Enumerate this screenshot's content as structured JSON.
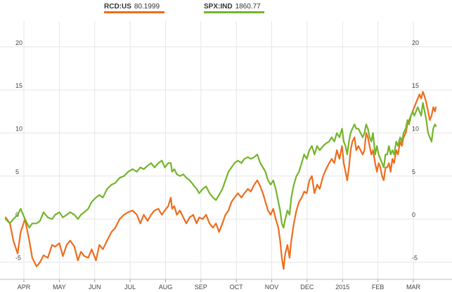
{
  "chart_data": {
    "type": "line",
    "legend_placement": "top-left",
    "grid": true,
    "x_labels": [
      "APR",
      "MAY",
      "JUN",
      "JUL",
      "AUG",
      "SEP",
      "OCT",
      "NOV",
      "DEC",
      "2015",
      "FEB",
      "MAR"
    ],
    "y_ticks": [
      -5,
      0,
      5,
      10,
      15,
      20
    ],
    "ylim": [
      -7,
      23
    ],
    "x_range": [
      0,
      1000
    ],
    "series": [
      {
        "name": "RCD:US",
        "last_value": "80.1999",
        "color": "#ee6d1c",
        "points": [
          [
            0,
            0.2
          ],
          [
            10,
            -0.5
          ],
          [
            18,
            -2.5
          ],
          [
            28,
            -4.0
          ],
          [
            35,
            -1.5
          ],
          [
            45,
            0
          ],
          [
            55,
            -2.5
          ],
          [
            62,
            -4.5
          ],
          [
            72,
            -5.5
          ],
          [
            80,
            -5.0
          ],
          [
            88,
            -4.2
          ],
          [
            98,
            -4.5
          ],
          [
            108,
            -3.0
          ],
          [
            115,
            -3.2
          ],
          [
            125,
            -2.8
          ],
          [
            133,
            -4.3
          ],
          [
            142,
            -3.0
          ],
          [
            150,
            -2.5
          ],
          [
            160,
            -3.2
          ],
          [
            168,
            -4.8
          ],
          [
            175,
            -3.8
          ],
          [
            183,
            -4.3
          ],
          [
            192,
            -4.5
          ],
          [
            200,
            -3.5
          ],
          [
            210,
            -4.8
          ],
          [
            218,
            -3.0
          ],
          [
            226,
            -3.5
          ],
          [
            236,
            -2.5
          ],
          [
            246,
            -1.5
          ],
          [
            255,
            -1.0
          ],
          [
            265,
            0
          ],
          [
            275,
            0.5
          ],
          [
            285,
            0.8
          ],
          [
            295,
            1.0
          ],
          [
            305,
            0.5
          ],
          [
            313,
            -0.5
          ],
          [
            321,
            0.5
          ],
          [
            330,
            -0.2
          ],
          [
            338,
            0.5
          ],
          [
            346,
            1.0
          ],
          [
            355,
            1.2
          ],
          [
            363,
            0.5
          ],
          [
            370,
            1.0
          ],
          [
            378,
            1.5
          ],
          [
            384,
            2.5
          ],
          [
            387,
            1.2
          ],
          [
            392,
            1.5
          ],
          [
            398,
            0.5
          ],
          [
            405,
            1.0
          ],
          [
            413,
            0.2
          ],
          [
            420,
            -0.5
          ],
          [
            428,
            0.2
          ],
          [
            436,
            0.5
          ],
          [
            444,
            -0.5
          ],
          [
            450,
            0.2
          ],
          [
            458,
            0
          ],
          [
            466,
            0.5
          ],
          [
            474,
            -0.5
          ],
          [
            482,
            -1.0
          ],
          [
            489,
            -0.5
          ],
          [
            496,
            -1.5
          ],
          [
            504,
            -0.5
          ],
          [
            511,
            0.5
          ],
          [
            518,
            1.0
          ],
          [
            525,
            2.0
          ],
          [
            532,
            2.5
          ],
          [
            540,
            3.0
          ],
          [
            548,
            2.5
          ],
          [
            555,
            3.0
          ],
          [
            563,
            3.5
          ],
          [
            570,
            3.2
          ],
          [
            578,
            4.0
          ],
          [
            585,
            4.5
          ],
          [
            592,
            3.8
          ],
          [
            598,
            3.0
          ],
          [
            604,
            2.0
          ],
          [
            610,
            1.0
          ],
          [
            616,
            0.5
          ],
          [
            622,
            1.2
          ],
          [
            628,
            0
          ],
          [
            634,
            -1.0
          ],
          [
            638,
            -2.5
          ],
          [
            642,
            -4.5
          ],
          [
            646,
            -5.8
          ],
          [
            650,
            -4.0
          ],
          [
            655,
            -3.0
          ],
          [
            660,
            -4.5
          ],
          [
            664,
            -2.5
          ],
          [
            670,
            -0.5
          ],
          [
            676,
            1.0
          ],
          [
            682,
            2.0
          ],
          [
            688,
            2.5
          ],
          [
            694,
            3.2
          ],
          [
            700,
            3.0
          ],
          [
            706,
            4.5
          ],
          [
            712,
            5.0
          ],
          [
            718,
            3.0
          ],
          [
            724,
            4.0
          ],
          [
            730,
            3.5
          ],
          [
            738,
            5.0
          ],
          [
            745,
            5.8
          ],
          [
            752,
            6.5
          ],
          [
            758,
            7.0
          ],
          [
            764,
            6.5
          ],
          [
            770,
            8.0
          ],
          [
            776,
            7.0
          ],
          [
            782,
            8.5
          ],
          [
            786,
            6.5
          ],
          [
            790,
            5.5
          ],
          [
            794,
            4.5
          ],
          [
            798,
            6.0
          ],
          [
            802,
            8.0
          ],
          [
            806,
            9.0
          ],
          [
            811,
            9.5
          ],
          [
            815,
            8.0
          ],
          [
            820,
            8.5
          ],
          [
            825,
            8.0
          ],
          [
            830,
            7.5
          ],
          [
            834,
            8.0
          ],
          [
            838,
            10.0
          ],
          [
            842,
            9.5
          ],
          [
            846,
            8.5
          ],
          [
            850,
            7.5
          ],
          [
            854,
            8.0
          ],
          [
            859,
            6.5
          ],
          [
            863,
            5.5
          ],
          [
            867,
            6.5
          ],
          [
            871,
            6.0
          ],
          [
            875,
            5.0
          ],
          [
            879,
            4.5
          ],
          [
            883,
            6.0
          ],
          [
            887,
            6.0
          ],
          [
            891,
            6.5
          ],
          [
            895,
            5.5
          ],
          [
            899,
            7.0
          ],
          [
            903,
            6.5
          ],
          [
            908,
            8.0
          ],
          [
            912,
            7.5
          ],
          [
            917,
            9.0
          ],
          [
            921,
            8.5
          ],
          [
            925,
            9.5
          ],
          [
            930,
            10.0
          ],
          [
            934,
            11.0
          ],
          [
            938,
            11.5
          ],
          [
            942,
            12.0
          ],
          [
            946,
            12.5
          ],
          [
            950,
            13.0
          ],
          [
            954,
            13.5
          ],
          [
            958,
            14.0
          ],
          [
            962,
            14.5
          ],
          [
            966,
            14.0
          ],
          [
            970,
            14.8
          ],
          [
            974,
            14.2
          ],
          [
            978,
            13.5
          ],
          [
            982,
            12.5
          ],
          [
            986,
            11.5
          ],
          [
            990,
            12.0
          ],
          [
            994,
            13.0
          ],
          [
            998,
            12.5
          ],
          [
            1000,
            13.0
          ]
        ]
      },
      {
        "name": "SPX:IND",
        "last_value": "1860.77",
        "color": "#73b52a",
        "points": [
          [
            0,
            0
          ],
          [
            10,
            -0.5
          ],
          [
            18,
            0
          ],
          [
            28,
            0.5
          ],
          [
            35,
            1.2
          ],
          [
            45,
            0
          ],
          [
            55,
            -1.0
          ],
          [
            62,
            -0.5
          ],
          [
            72,
            -0.5
          ],
          [
            80,
            -0.2
          ],
          [
            88,
            0.8
          ],
          [
            98,
            0.2
          ],
          [
            108,
            0
          ],
          [
            115,
            0.5
          ],
          [
            125,
            0.8
          ],
          [
            133,
            0.2
          ],
          [
            142,
            0.5
          ],
          [
            150,
            0.8
          ],
          [
            160,
            0.5
          ],
          [
            168,
            0
          ],
          [
            175,
            0.5
          ],
          [
            183,
            0.8
          ],
          [
            192,
            1.2
          ],
          [
            200,
            2.0
          ],
          [
            210,
            2.5
          ],
          [
            218,
            2.8
          ],
          [
            226,
            2.5
          ],
          [
            236,
            3.5
          ],
          [
            246,
            4.0
          ],
          [
            255,
            4.2
          ],
          [
            265,
            4.8
          ],
          [
            275,
            5.0
          ],
          [
            285,
            5.5
          ],
          [
            295,
            5.8
          ],
          [
            305,
            5.5
          ],
          [
            313,
            6.0
          ],
          [
            321,
            5.8
          ],
          [
            330,
            6.2
          ],
          [
            338,
            6.5
          ],
          [
            346,
            6.0
          ],
          [
            355,
            6.5
          ],
          [
            363,
            6.8
          ],
          [
            370,
            6.0
          ],
          [
            378,
            6.5
          ],
          [
            384,
            6.5
          ],
          [
            387,
            5.5
          ],
          [
            392,
            5.8
          ],
          [
            398,
            5.2
          ],
          [
            405,
            5.0
          ],
          [
            413,
            5.2
          ],
          [
            420,
            4.8
          ],
          [
            428,
            4.5
          ],
          [
            436,
            4.0
          ],
          [
            444,
            3.5
          ],
          [
            450,
            3.0
          ],
          [
            458,
            3.5
          ],
          [
            466,
            3.8
          ],
          [
            474,
            3.0
          ],
          [
            482,
            2.5
          ],
          [
            489,
            2.2
          ],
          [
            496,
            2.8
          ],
          [
            504,
            3.5
          ],
          [
            511,
            4.5
          ],
          [
            518,
            5.5
          ],
          [
            525,
            6.0
          ],
          [
            532,
            6.5
          ],
          [
            540,
            6.8
          ],
          [
            548,
            6.5
          ],
          [
            555,
            7.0
          ],
          [
            563,
            7.2
          ],
          [
            570,
            7.0
          ],
          [
            578,
            7.2
          ],
          [
            585,
            7.5
          ],
          [
            592,
            6.5
          ],
          [
            598,
            6.0
          ],
          [
            604,
            5.5
          ],
          [
            610,
            4.5
          ],
          [
            616,
            4.0
          ],
          [
            622,
            4.5
          ],
          [
            628,
            3.5
          ],
          [
            634,
            2.0
          ],
          [
            638,
            1.0
          ],
          [
            642,
            -0.5
          ],
          [
            646,
            -1.0
          ],
          [
            650,
            0
          ],
          [
            655,
            1.0
          ],
          [
            660,
            0.5
          ],
          [
            664,
            2.5
          ],
          [
            670,
            4.0
          ],
          [
            676,
            5.0
          ],
          [
            682,
            5.5
          ],
          [
            688,
            6.5
          ],
          [
            694,
            7.5
          ],
          [
            700,
            7.0
          ],
          [
            706,
            8.0
          ],
          [
            712,
            8.5
          ],
          [
            718,
            7.5
          ],
          [
            724,
            8.5
          ],
          [
            730,
            8.0
          ],
          [
            738,
            8.5
          ],
          [
            745,
            8.8
          ],
          [
            752,
            9.0
          ],
          [
            758,
            9.5
          ],
          [
            764,
            9.0
          ],
          [
            770,
            10.0
          ],
          [
            776,
            9.5
          ],
          [
            782,
            10.5
          ],
          [
            786,
            9.0
          ],
          [
            790,
            8.5
          ],
          [
            794,
            7.5
          ],
          [
            798,
            9.0
          ],
          [
            802,
            10.0
          ],
          [
            806,
            10.5
          ],
          [
            811,
            11.0
          ],
          [
            815,
            10.5
          ],
          [
            820,
            10.5
          ],
          [
            825,
            10.0
          ],
          [
            830,
            9.5
          ],
          [
            834,
            10.0
          ],
          [
            838,
            11.0
          ],
          [
            842,
            10.5
          ],
          [
            846,
            9.5
          ],
          [
            850,
            9.0
          ],
          [
            854,
            10.0
          ],
          [
            859,
            7.5
          ],
          [
            863,
            8.5
          ],
          [
            867,
            7.5
          ],
          [
            871,
            7.0
          ],
          [
            875,
            6.5
          ],
          [
            879,
            6.0
          ],
          [
            883,
            7.5
          ],
          [
            887,
            7.5
          ],
          [
            891,
            8.5
          ],
          [
            895,
            7.5
          ],
          [
            899,
            8.0
          ],
          [
            903,
            7.5
          ],
          [
            908,
            9.0
          ],
          [
            912,
            8.5
          ],
          [
            917,
            9.5
          ],
          [
            921,
            9.0
          ],
          [
            925,
            10.0
          ],
          [
            930,
            10.5
          ],
          [
            934,
            11.5
          ],
          [
            938,
            11.0
          ],
          [
            942,
            12.0
          ],
          [
            946,
            12.5
          ],
          [
            950,
            12.0
          ],
          [
            954,
            12.5
          ],
          [
            958,
            13.0
          ],
          [
            962,
            12.5
          ],
          [
            966,
            12.0
          ],
          [
            970,
            13.5
          ],
          [
            974,
            12.5
          ],
          [
            978,
            11.5
          ],
          [
            982,
            10.0
          ],
          [
            986,
            9.5
          ],
          [
            990,
            9.0
          ],
          [
            994,
            10.5
          ],
          [
            998,
            11.0
          ],
          [
            1000,
            10.8
          ]
        ]
      }
    ]
  }
}
